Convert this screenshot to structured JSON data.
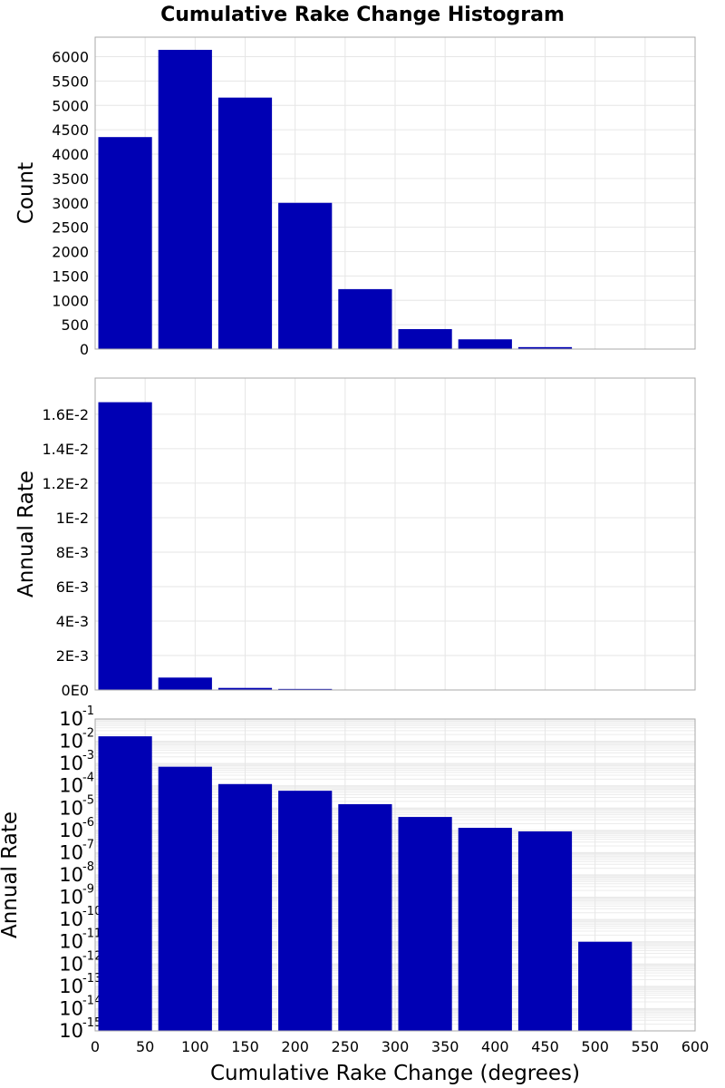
{
  "chart_data": {
    "type": "bar",
    "title": "Cumulative Rake Change Histogram",
    "xlabel": "Cumulative Rake Change (degrees)",
    "xlim": [
      0,
      600
    ],
    "x_ticks": [
      "0",
      "50",
      "100",
      "150",
      "200",
      "250",
      "300",
      "350",
      "400",
      "450",
      "500",
      "550",
      "600"
    ],
    "bin_width": 60,
    "bin_centers": [
      30,
      90,
      150,
      210,
      270,
      330,
      390,
      450,
      510,
      570
    ],
    "grid": true,
    "color": "#0000b4",
    "panels": [
      {
        "ylabel": "Count",
        "scale": "linear",
        "ylim": [
          0,
          6400
        ],
        "y_ticks": [
          {
            "value": 0,
            "label": "0"
          },
          {
            "value": 500,
            "label": "500"
          },
          {
            "value": 1000,
            "label": "1000"
          },
          {
            "value": 1500,
            "label": "1500"
          },
          {
            "value": 2000,
            "label": "2000"
          },
          {
            "value": 2500,
            "label": "2500"
          },
          {
            "value": 3000,
            "label": "3000"
          },
          {
            "value": 3500,
            "label": "3500"
          },
          {
            "value": 4000,
            "label": "4000"
          },
          {
            "value": 4500,
            "label": "4500"
          },
          {
            "value": 5000,
            "label": "5000"
          },
          {
            "value": 5500,
            "label": "5500"
          },
          {
            "value": 6000,
            "label": "6000"
          }
        ],
        "values": [
          4350,
          6140,
          5160,
          3000,
          1230,
          410,
          200,
          40,
          5,
          1
        ]
      },
      {
        "ylabel": "Annual Rate",
        "scale": "linear",
        "ylim": [
          0,
          0.0181
        ],
        "y_ticks": [
          {
            "value": 0,
            "label": "0E0"
          },
          {
            "value": 0.002,
            "label": "2E-3"
          },
          {
            "value": 0.004,
            "label": "4E-3"
          },
          {
            "value": 0.006,
            "label": "6E-3"
          },
          {
            "value": 0.008,
            "label": "8E-3"
          },
          {
            "value": 0.01,
            "label": "1E-2"
          },
          {
            "value": 0.012,
            "label": "1.2E-2"
          },
          {
            "value": 0.014,
            "label": "1.4E-2"
          },
          {
            "value": 0.016,
            "label": "1.6E-2"
          }
        ],
        "values": [
          0.0167,
          0.00072,
          0.00012,
          6e-05,
          1.5e-05,
          4e-06,
          1.3e-06,
          9e-07,
          1e-11,
          1e-15
        ]
      },
      {
        "ylabel": "Annual Rate",
        "scale": "log",
        "ylim": [
          1e-15,
          0.1
        ],
        "y_ticks": [
          {
            "value": 0.1,
            "base": "10",
            "exp": "-1"
          },
          {
            "value": 0.01,
            "base": "10",
            "exp": "-2"
          },
          {
            "value": 0.001,
            "base": "10",
            "exp": "-3"
          },
          {
            "value": 0.0001,
            "base": "10",
            "exp": "-4"
          },
          {
            "value": 1e-05,
            "base": "10",
            "exp": "-5"
          },
          {
            "value": 1e-06,
            "base": "10",
            "exp": "-6"
          },
          {
            "value": 1e-07,
            "base": "10",
            "exp": "-7"
          },
          {
            "value": 1e-08,
            "base": "10",
            "exp": "-8"
          },
          {
            "value": 1e-09,
            "base": "10",
            "exp": "-9"
          },
          {
            "value": 1e-10,
            "base": "10",
            "exp": "-10"
          },
          {
            "value": 1e-11,
            "base": "10",
            "exp": "-11"
          },
          {
            "value": 1e-12,
            "base": "10",
            "exp": "-12"
          },
          {
            "value": 1e-13,
            "base": "10",
            "exp": "-13"
          },
          {
            "value": 1e-14,
            "base": "10",
            "exp": "-14"
          },
          {
            "value": 1e-15,
            "base": "10",
            "exp": "-15"
          }
        ],
        "values": [
          0.0167,
          0.00072,
          0.00012,
          6e-05,
          1.5e-05,
          4e-06,
          1.3e-06,
          9e-07,
          1e-11,
          1e-15
        ]
      }
    ]
  }
}
